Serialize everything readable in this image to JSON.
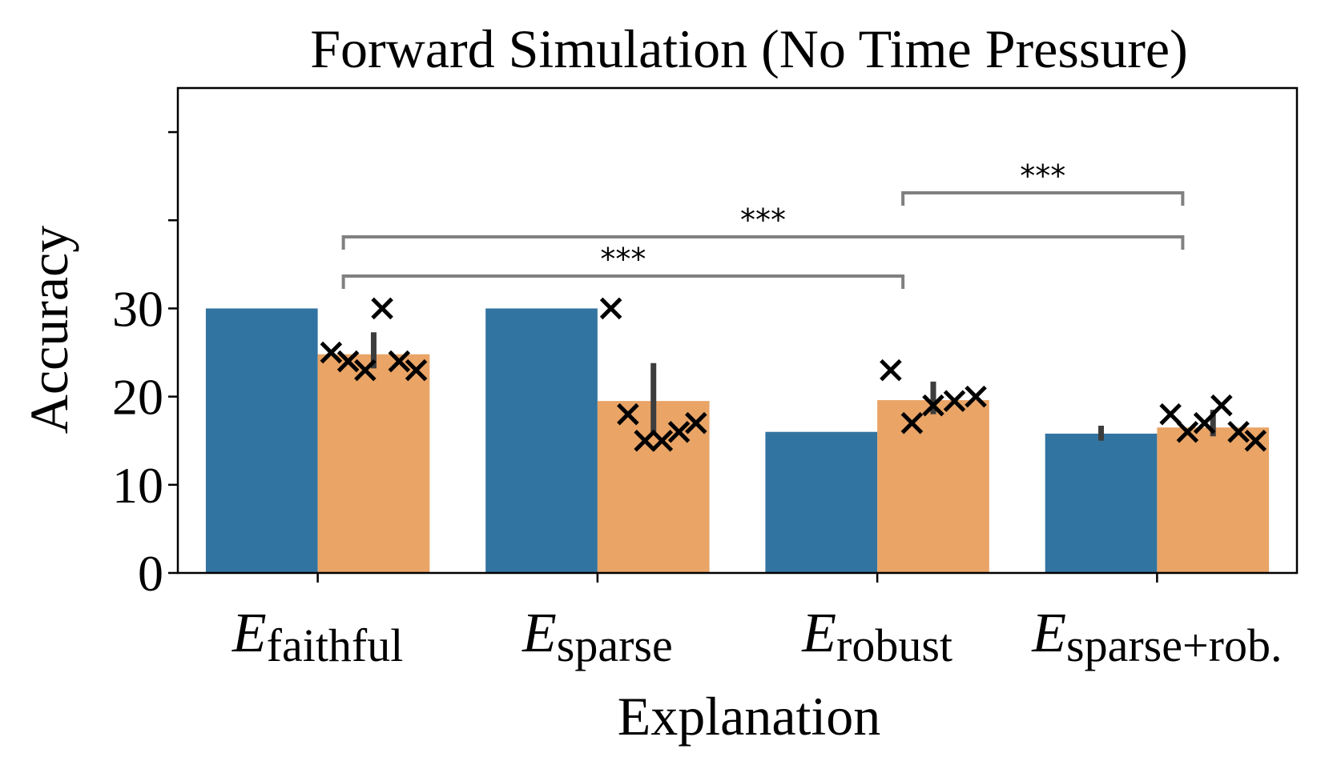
{
  "chart_data": {
    "type": "bar",
    "title": "Forward Simulation (No Time Pressure)",
    "xlabel": "Explanation",
    "ylabel": "Accuracy",
    "ylim": [
      0,
      55
    ],
    "yticks": [
      0,
      10,
      20,
      30
    ],
    "categories": [
      {
        "main": "E",
        "sub": "faithful"
      },
      {
        "main": "E",
        "sub": "sparse"
      },
      {
        "main": "E",
        "sub": "robust"
      },
      {
        "main": "E",
        "sub": "sparse+rob."
      }
    ],
    "series": [
      {
        "color": "#3274a1",
        "values": [
          30,
          30,
          16,
          15.8
        ],
        "errors": [
          null,
          null,
          null,
          [
            15,
            16.7
          ]
        ],
        "points": []
      },
      {
        "color": "#e9a466",
        "values": [
          24.8,
          19.5,
          19.6,
          16.5
        ],
        "errors": [
          [
            23.2,
            27.3
          ],
          [
            16,
            23.8
          ],
          [
            18,
            21.7
          ],
          [
            15.5,
            18.5
          ]
        ],
        "points": [
          [
            25,
            24,
            23,
            30,
            24,
            23
          ],
          [
            30,
            18,
            15,
            15,
            16,
            17
          ],
          [
            23,
            17,
            19,
            19.5,
            20
          ],
          [
            18,
            16,
            17,
            19,
            16,
            15
          ]
        ]
      }
    ],
    "significance": [
      {
        "from": 0,
        "to": 2,
        "label": "***"
      },
      {
        "from": 0,
        "to": 3,
        "label": "***"
      },
      {
        "from": 2,
        "to": 3,
        "label": "***"
      }
    ],
    "grid": false,
    "legend": "none"
  }
}
